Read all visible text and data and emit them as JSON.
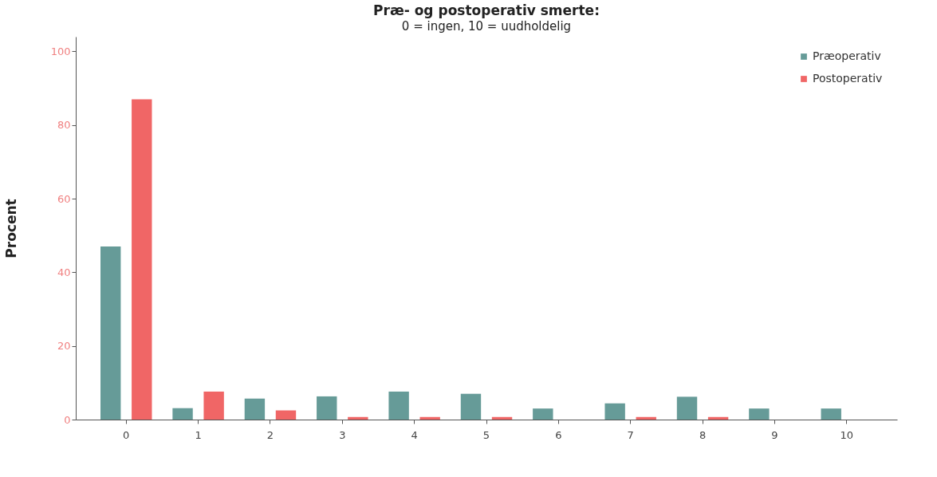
{
  "chart_data": {
    "type": "bar",
    "title": "Præ- og postoperativ smerte:",
    "subtitle": "0 = ingen, 10 = uudholdelig",
    "ylabel": "Procent",
    "categories": [
      "0",
      "1",
      "2",
      "3",
      "4",
      "5",
      "6",
      "7",
      "8",
      "9",
      "10"
    ],
    "series": [
      {
        "name": "Præoperativ",
        "color": "#669b98",
        "values": [
          47,
          3.1,
          5.7,
          6.3,
          7.6,
          7.0,
          3.0,
          4.4,
          6.2,
          3.0,
          3.0
        ]
      },
      {
        "name": "Postoperativ",
        "color": "#f06666",
        "values": [
          87,
          7.6,
          2.5,
          0.7,
          0.7,
          0.7,
          0,
          0.7,
          0.7,
          0,
          0
        ]
      }
    ],
    "ylim": [
      0,
      104
    ],
    "yticks": [
      0,
      20,
      40,
      60,
      80,
      100
    ],
    "grid": false,
    "legend": "top right"
  }
}
